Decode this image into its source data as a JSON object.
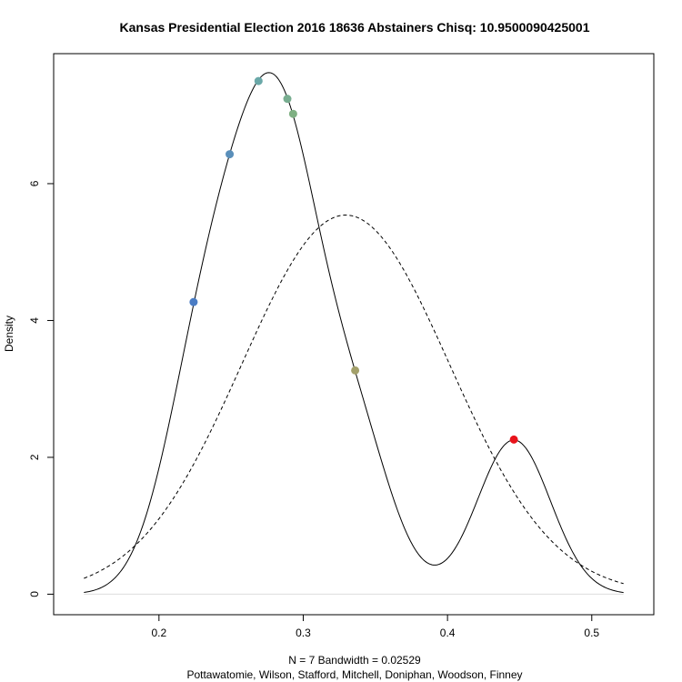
{
  "chart_data": {
    "type": "line",
    "title": "Kansas Presidential Election 2016 18636 Abstainers Chisq: 10.9500090425001",
    "xlabel": "N = 7   Bandwidth = 0.02529",
    "sub": "Pottawatomie, Wilson, Stafford, Mitchell, Doniphan, Woodson, Finney",
    "ylabel": "Density",
    "xlim": [
      0.127,
      0.543
    ],
    "ylim": [
      -0.3,
      7.9
    ],
    "xticks": [
      0.2,
      0.3,
      0.4,
      0.5
    ],
    "xtick_labels": [
      "0.2",
      "0.3",
      "0.4",
      "0.5"
    ],
    "yticks": [
      0,
      2,
      4,
      6
    ],
    "ytick_labels": [
      "0",
      "2",
      "4",
      "6"
    ],
    "kde": {
      "bandwidth": 0.02529,
      "samples": [
        0.224,
        0.249,
        0.269,
        0.289,
        0.293,
        0.336,
        0.446
      ],
      "x_range": [
        0.148,
        0.522
      ],
      "style": "solid"
    },
    "normal": {
      "mean": 0.3294,
      "sd": 0.072,
      "x_range": [
        0.148,
        0.522
      ],
      "style": "dashed"
    },
    "points": [
      {
        "name": "Pottawatomie",
        "x": 0.224,
        "y": 4.27,
        "color": "#4a7cc4"
      },
      {
        "name": "Wilson",
        "x": 0.249,
        "y": 6.43,
        "color": "#5a8fba"
      },
      {
        "name": "Stafford",
        "x": 0.269,
        "y": 7.5,
        "color": "#6aa8a8"
      },
      {
        "name": "Mitchell",
        "x": 0.289,
        "y": 7.24,
        "color": "#78ad90"
      },
      {
        "name": "Doniphan",
        "x": 0.293,
        "y": 7.02,
        "color": "#7fb083"
      },
      {
        "name": "Woodson",
        "x": 0.336,
        "y": 3.27,
        "color": "#a3a06a"
      },
      {
        "name": "Finney",
        "x": 0.446,
        "y": 2.26,
        "color": "#e8131b"
      }
    ]
  }
}
